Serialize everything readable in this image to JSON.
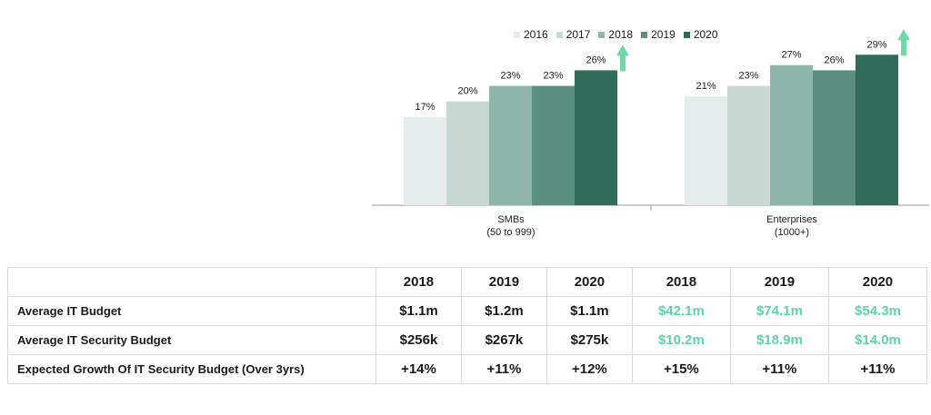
{
  "chart_data": {
    "type": "bar",
    "categories": [
      "SMBs",
      "Enterprises"
    ],
    "category_sublabels": [
      "(50 to 999)",
      "(1000+)"
    ],
    "series": [
      {
        "name": "2016",
        "values": [
          17,
          21
        ],
        "labels": [
          "17%",
          "21%"
        ],
        "color": "#e6ecec"
      },
      {
        "name": "2017",
        "values": [
          20,
          23
        ],
        "labels": [
          "20%",
          "23%"
        ],
        "color": "#c8d9d4"
      },
      {
        "name": "2018",
        "values": [
          23,
          27
        ],
        "labels": [
          "23%",
          "27%"
        ],
        "color": "#8fb6ab"
      },
      {
        "name": "2019",
        "values": [
          23,
          26
        ],
        "labels": [
          "23%",
          "26%"
        ],
        "color": "#5a8e80"
      },
      {
        "name": "2020",
        "values": [
          26,
          29
        ],
        "labels": [
          "26%",
          "29%"
        ],
        "color": "#2e6b58"
      }
    ],
    "ylim": [
      0,
      35
    ],
    "legend_position": "top",
    "arrow_color": "#6fd8a6",
    "grid": false
  },
  "table": {
    "header": [
      "",
      "2018",
      "2019",
      "2020",
      "2018",
      "2019",
      "2020"
    ],
    "rows": [
      {
        "label": "Average IT Budget",
        "values": [
          "$1.1m",
          "$1.2m",
          "$1.1m",
          "$42.1m",
          "$74.1m",
          "$54.3m"
        ]
      },
      {
        "label": "Average IT Security Budget",
        "values": [
          "$256k",
          "$267k",
          "$275k",
          "$10.2m",
          "$18.9m",
          "$14.0m"
        ]
      },
      {
        "label": "Expected Growth Of IT Security Budget (Over 3yrs)",
        "values": [
          "+14%",
          "+11%",
          "+12%",
          "+15%",
          "+11%",
          "+11%"
        ]
      }
    ],
    "enterprise_color": "#5fd3a6"
  }
}
